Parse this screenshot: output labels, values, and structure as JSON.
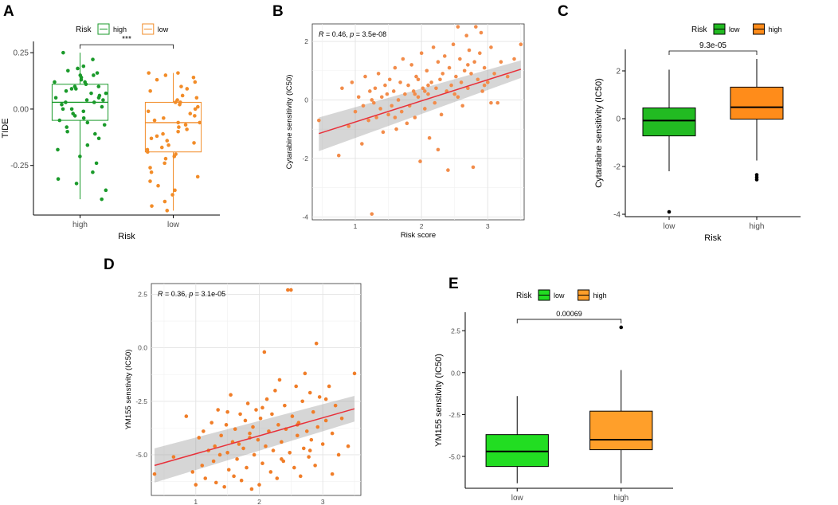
{
  "figure": {
    "panels": [
      "A",
      "B",
      "C",
      "D",
      "E"
    ]
  },
  "chart_data": [
    {
      "id": "A",
      "type": "box",
      "title": "",
      "xlabel": "Risk",
      "ylabel": "TIDE",
      "categories": [
        "high",
        "low"
      ],
      "ylim": [
        -0.47,
        0.3
      ],
      "yticks": [
        -0.25,
        0.0,
        0.25
      ],
      "ytick_labels": [
        "-0.25",
        "0.00",
        "0.25"
      ],
      "legend": {
        "title": "Risk",
        "entries": [
          "high",
          "low"
        ],
        "placement": "top"
      },
      "colors": {
        "high": "#1a9a2a",
        "low": "#f28c28"
      },
      "boxes": [
        {
          "name": "high",
          "min": -0.4,
          "q1": -0.05,
          "median": 0.03,
          "q3": 0.11,
          "max": 0.25
        },
        {
          "name": "low",
          "min": -0.45,
          "q1": -0.19,
          "median": -0.06,
          "q3": 0.03,
          "max": 0.16
        }
      ],
      "points": {
        "high": [
          0.25,
          0.22,
          0.19,
          0.18,
          0.17,
          0.16,
          0.15,
          0.15,
          0.14,
          0.13,
          0.12,
          0.12,
          0.11,
          0.1,
          0.1,
          0.09,
          0.09,
          0.08,
          0.07,
          0.07,
          0.06,
          0.05,
          0.05,
          0.04,
          0.04,
          0.03,
          0.03,
          0.02,
          0.01,
          0.0,
          0.0,
          -0.01,
          -0.02,
          -0.03,
          -0.04,
          -0.05,
          -0.06,
          -0.07,
          -0.08,
          -0.1,
          -0.11,
          -0.13,
          -0.16,
          -0.18,
          -0.21,
          -0.24,
          -0.28,
          -0.31,
          -0.33,
          -0.36,
          -0.4
        ],
        "low": [
          0.16,
          0.16,
          0.15,
          0.14,
          0.13,
          0.12,
          0.1,
          0.09,
          0.08,
          0.06,
          0.05,
          0.04,
          0.03,
          0.03,
          0.02,
          0.01,
          0.0,
          -0.01,
          -0.02,
          -0.03,
          -0.04,
          -0.05,
          -0.06,
          -0.06,
          -0.07,
          -0.08,
          -0.09,
          -0.1,
          -0.11,
          -0.12,
          -0.13,
          -0.14,
          -0.15,
          -0.16,
          -0.17,
          -0.18,
          -0.19,
          -0.2,
          -0.21,
          -0.22,
          -0.24,
          -0.26,
          -0.28,
          -0.3,
          -0.32,
          -0.34,
          -0.36,
          -0.38,
          -0.41,
          -0.43,
          -0.45
        ]
      },
      "annotation": "***"
    },
    {
      "id": "B",
      "type": "scatter",
      "title": "",
      "xlabel": "Risk score",
      "ylabel": "Cytarabine sensitivity (IC50)",
      "xlim": [
        0.35,
        3.55
      ],
      "ylim": [
        -4.1,
        2.6
      ],
      "xticks": [
        1,
        2,
        3
      ],
      "yticks": [
        -4,
        -2,
        0,
        2
      ],
      "annotation": {
        "r_label": "R",
        "r_text": " = 0.46, ",
        "p_label": "p",
        "p_text": " = 3.5e-08"
      },
      "point_color": "#f28c4a",
      "fit": {
        "x": [
          0.45,
          3.5
        ],
        "y": [
          -1.15,
          1.05
        ],
        "color": "#e8303a",
        "ribbon_lower": [
          -1.75,
          0.75
        ],
        "ribbon_upper": [
          -0.6,
          1.35
        ]
      },
      "x": [
        0.45,
        0.75,
        0.8,
        0.9,
        0.95,
        1.0,
        1.05,
        1.1,
        1.12,
        1.15,
        1.2,
        1.22,
        1.25,
        1.28,
        1.3,
        1.32,
        1.35,
        1.38,
        1.4,
        1.42,
        1.45,
        1.48,
        1.5,
        1.52,
        1.55,
        1.58,
        1.6,
        1.62,
        1.65,
        1.68,
        1.7,
        1.72,
        1.75,
        1.78,
        1.8,
        1.82,
        1.85,
        1.88,
        1.9,
        1.92,
        1.95,
        1.98,
        2.0,
        2.02,
        2.05,
        2.08,
        2.1,
        2.12,
        2.15,
        2.18,
        2.2,
        2.22,
        2.25,
        2.28,
        2.3,
        2.32,
        2.35,
        2.38,
        2.4,
        2.42,
        2.45,
        2.48,
        2.5,
        2.52,
        2.55,
        2.58,
        2.6,
        2.62,
        2.65,
        2.68,
        2.7,
        2.72,
        2.75,
        2.78,
        2.8,
        2.82,
        2.85,
        2.88,
        2.9,
        2.92,
        2.95,
        3.0,
        3.05,
        3.1,
        3.15,
        3.2,
        3.3,
        3.4,
        3.5,
        1.25,
        1.6,
        1.9,
        2.1,
        2.25,
        2.55,
        2.7,
        2.95,
        3.05,
        2.05,
        1.95
      ],
      "y": [
        -0.7,
        -1.9,
        0.4,
        -0.9,
        0.6,
        -0.4,
        0.1,
        -1.5,
        -0.2,
        0.8,
        -0.7,
        0.3,
        -3.9,
        -0.1,
        0.4,
        -0.6,
        0.9,
        -0.3,
        0.1,
        -1.1,
        0.5,
        0.2,
        -0.5,
        0.7,
        -0.2,
        0.3,
        1.1,
        -1.0,
        0.0,
        0.6,
        -0.4,
        1.4,
        0.2,
        -0.8,
        0.5,
        -0.2,
        1.2,
        0.3,
        -0.6,
        0.8,
        0.1,
        -2.1,
        1.6,
        0.4,
        -0.3,
        1.0,
        0.2,
        -1.3,
        0.6,
        1.8,
        -0.1,
        0.4,
        1.3,
        0.7,
        -0.5,
        0.9,
        1.5,
        0.3,
        -2.4,
        1.1,
        0.5,
        1.9,
        0.2,
        0.8,
        2.5,
        1.4,
        0.6,
        -0.2,
        1.0,
        2.2,
        0.4,
        1.7,
        0.9,
        -2.3,
        1.3,
        2.5,
        0.7,
        1.6,
        2.3,
        0.3,
        1.1,
        0.6,
        1.8,
        0.9,
        -0.1,
        1.3,
        0.8,
        1.4,
        1.9,
        0.0,
        -0.6,
        0.2,
        0.5,
        -1.7,
        0.1,
        1.2,
        0.5,
        -0.1,
        0.3,
        0.7
      ]
    },
    {
      "id": "C",
      "type": "box",
      "title": "",
      "xlabel": "Risk",
      "ylabel": "Cytarabine sensitivity (IC50)",
      "categories": [
        "low",
        "high"
      ],
      "ylim": [
        -4.1,
        2.9
      ],
      "yticks": [
        -4,
        -2,
        0,
        2
      ],
      "legend": {
        "title": "Risk",
        "entries": [
          "low",
          "high"
        ],
        "placement": "top"
      },
      "colors": {
        "low": "#22bb22",
        "high": "#ff8c1a"
      },
      "boxes": [
        {
          "name": "low",
          "min": -2.2,
          "q1": -0.72,
          "median": -0.08,
          "q3": 0.45,
          "max": 2.05,
          "outliers": [
            -3.9
          ]
        },
        {
          "name": "high",
          "min": -1.75,
          "q1": -0.02,
          "median": 0.48,
          "q3": 1.32,
          "max": 2.5,
          "outliers": [
            -2.35,
            -2.45,
            -2.55
          ]
        }
      ],
      "annotation": "9.3e-05"
    },
    {
      "id": "D",
      "type": "scatter",
      "title": "",
      "xlabel": "Risk score",
      "ylabel": "YM155 senstivity (IC50)",
      "xlim": [
        0.3,
        3.6
      ],
      "ylim": [
        -6.9,
        3.0
      ],
      "xticks": [
        1,
        2,
        3
      ],
      "yticks": [
        -5.0,
        -2.5,
        0.0,
        2.5
      ],
      "ytick_labels": [
        "-5.0",
        "-2.5",
        "0.0",
        "2.5"
      ],
      "annotation": {
        "r_label": "R",
        "r_text": " = 0.36, ",
        "p_label": "p",
        "p_text": " = 3.1e-05"
      },
      "point_color": "#f07d28",
      "fit": {
        "x": [
          0.35,
          3.5
        ],
        "y": [
          -5.5,
          -2.85
        ],
        "color": "#e8303a",
        "ribbon_lower": [
          -6.3,
          -3.45
        ],
        "ribbon_upper": [
          -4.7,
          -2.25
        ]
      },
      "x": [
        0.35,
        0.65,
        0.85,
        0.95,
        1.0,
        1.05,
        1.1,
        1.12,
        1.15,
        1.2,
        1.25,
        1.28,
        1.3,
        1.32,
        1.35,
        1.38,
        1.4,
        1.45,
        1.48,
        1.5,
        1.52,
        1.55,
        1.58,
        1.6,
        1.62,
        1.65,
        1.68,
        1.7,
        1.72,
        1.75,
        1.78,
        1.8,
        1.82,
        1.85,
        1.88,
        1.9,
        1.92,
        1.95,
        1.98,
        2.0,
        2.02,
        2.05,
        2.08,
        2.1,
        2.12,
        2.15,
        2.18,
        2.2,
        2.22,
        2.25,
        2.28,
        2.3,
        2.32,
        2.35,
        2.38,
        2.4,
        2.42,
        2.45,
        2.48,
        2.5,
        2.52,
        2.55,
        2.58,
        2.6,
        2.62,
        2.65,
        2.68,
        2.7,
        2.72,
        2.75,
        2.78,
        2.8,
        2.82,
        2.85,
        2.88,
        2.9,
        2.92,
        2.95,
        3.0,
        3.05,
        3.1,
        3.15,
        3.2,
        3.25,
        3.3,
        3.4,
        3.5,
        1.5,
        1.85,
        2.05,
        2.35,
        2.6,
        2.8,
        3.05,
        3.15
      ],
      "y": [
        -5.9,
        -5.1,
        -3.2,
        -5.8,
        -6.4,
        -4.2,
        -5.5,
        -3.9,
        -6.1,
        -4.8,
        -3.5,
        -5.3,
        -4.6,
        -6.3,
        -2.9,
        -5.0,
        -4.1,
        -6.5,
        -3.6,
        -4.9,
        -5.7,
        -2.2,
        -4.4,
        -6.0,
        -3.8,
        -5.2,
        -4.5,
        -3.1,
        -6.2,
        -4.7,
        -3.4,
        -5.6,
        -2.6,
        -4.0,
        -6.6,
        -3.7,
        -5.0,
        -2.9,
        -4.3,
        -6.4,
        -3.3,
        -5.4,
        -0.2,
        -4.6,
        -2.4,
        -3.9,
        -5.8,
        -3.1,
        -4.8,
        -2.0,
        -6.1,
        -3.6,
        -1.5,
        -4.4,
        -5.3,
        -2.7,
        -3.8,
        2.7,
        -4.9,
        2.7,
        -3.2,
        -5.6,
        -1.8,
        -4.1,
        -3.5,
        -6.0,
        -2.5,
        -4.7,
        -1.2,
        -3.9,
        -5.1,
        -2.1,
        -4.3,
        -3.0,
        -5.5,
        0.2,
        -3.7,
        -2.3,
        -4.5,
        -3.4,
        -1.8,
        -4.0,
        -2.7,
        -5.0,
        -3.3,
        -4.6,
        -1.2,
        -3.0,
        -4.2,
        -2.8,
        -5.2,
        -3.6,
        -4.8,
        -2.4,
        -5.9
      ]
    },
    {
      "id": "E",
      "type": "box",
      "title": "",
      "xlabel": "Risk",
      "ylabel": "YM155 senstivity (IC50)",
      "categories": [
        "low",
        "high"
      ],
      "ylim": [
        -6.9,
        3.6
      ],
      "yticks": [
        -5.0,
        -2.5,
        0.0,
        2.5
      ],
      "ytick_labels": [
        "-5.0",
        "-2.5",
        "0.0",
        "2.5"
      ],
      "legend": {
        "title": "Risk",
        "entries": [
          "low",
          "high"
        ],
        "placement": "top"
      },
      "colors": {
        "low": "#22dd22",
        "high": "#ff9f2a"
      },
      "boxes": [
        {
          "name": "low",
          "min": -6.6,
          "q1": -5.6,
          "median": -4.7,
          "q3": -3.7,
          "max": -1.4,
          "outliers": []
        },
        {
          "name": "high",
          "min": -6.6,
          "q1": -4.6,
          "median": -4.0,
          "q3": -2.3,
          "max": 0.15,
          "outliers": [
            2.7
          ]
        }
      ],
      "annotation": "0.00069"
    }
  ]
}
